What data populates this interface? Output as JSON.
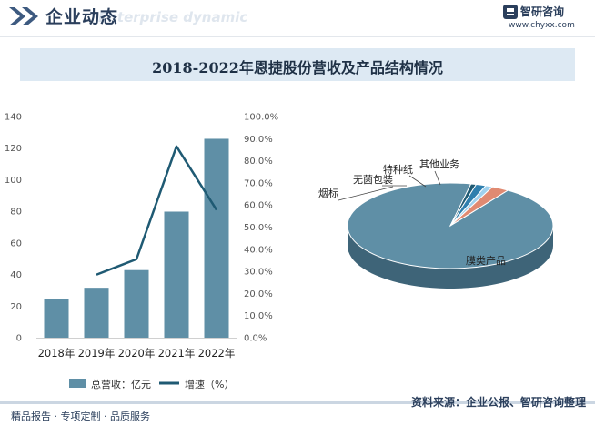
{
  "header": {
    "title": "企业动态",
    "subtitle": "Enterprise dynamic",
    "brand_name": "智研咨询",
    "brand_url": "www.chyxx.com"
  },
  "colors": {
    "bar": "#5f8fa6",
    "line": "#1f5a73",
    "pie_side": "#3e6478",
    "brand": "#2b3f5c"
  },
  "chart_data": [
    {
      "type": "bar",
      "title": "2018-2022年恩捷股份营收及产品结构情况",
      "categories": [
        "2018年",
        "2019年",
        "2020年",
        "2021年",
        "2022年"
      ],
      "series": [
        {
          "name": "总营收：亿元",
          "type": "bar",
          "axis": "left",
          "values": [
            24.6,
            31.6,
            42.8,
            79.8,
            125.9
          ]
        },
        {
          "name": "增速（%）",
          "type": "line",
          "axis": "right",
          "values": [
            null,
            28.5,
            35.5,
            86.5,
            57.8
          ]
        }
      ],
      "y_left": {
        "ylim": [
          0,
          140
        ],
        "ticks": [
          "0",
          "20",
          "40",
          "60",
          "80",
          "100",
          "120",
          "140"
        ]
      },
      "y_right": {
        "ylim": [
          0,
          100
        ],
        "ticks": [
          "0.0%",
          "10.0%",
          "20.0%",
          "30.0%",
          "40.0%",
          "50.0%",
          "60.0%",
          "70.0%",
          "80.0%",
          "90.0%",
          "100.0%"
        ]
      },
      "legend_position": "bottom",
      "grid": false
    },
    {
      "type": "pie",
      "slices": [
        {
          "label": "膜类产品",
          "value": 90.4,
          "color": "#5f8fa6"
        },
        {
          "label": "烟标",
          "value": 0.8,
          "color": "#1f5a73"
        },
        {
          "label": "无菌包装",
          "value": 1.5,
          "color": "#2f7fae"
        },
        {
          "label": "特种纸",
          "value": 1.1,
          "color": "#9fd1ee"
        },
        {
          "label": "其他业务",
          "value": 2.6,
          "color": "#e08a72"
        }
      ]
    }
  ],
  "footer": {
    "left": "精品报告 · 专项定制 · 品质服务",
    "right": "资料来源：企业公报、智研咨询整理"
  }
}
